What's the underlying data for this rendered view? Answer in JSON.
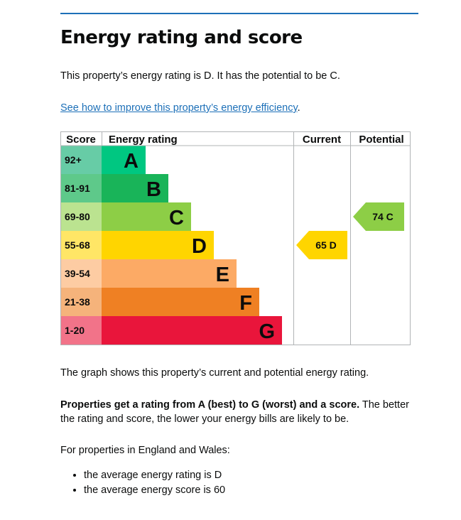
{
  "page": {
    "title": "Energy rating and score",
    "intro": "This property’s energy rating is D. It has the potential to be C.",
    "improve_link": "See how to improve this property’s energy efficiency",
    "improve_link_suffix": ".",
    "summary": "The graph shows this property’s current and potential energy rating.",
    "rating_info_bold": "Properties get a rating from A (best) to G (worst) and a score.",
    "rating_info_rest": " The better the rating and score, the lower your energy bills are likely to be.",
    "region_intro": "For properties in England and Wales:",
    "averages": [
      "the average energy rating is D",
      "the average energy score is 60"
    ]
  },
  "chart_data": {
    "type": "table",
    "headers": {
      "score": "Score",
      "rating": "Energy rating",
      "current": "Current",
      "potential": "Potential"
    },
    "bands": [
      {
        "letter": "A",
        "score_range": "92+",
        "color": "#00c781",
        "score_bg": "#67cca6"
      },
      {
        "letter": "B",
        "score_range": "81-91",
        "color": "#19b459",
        "score_bg": "#5ec98a"
      },
      {
        "letter": "C",
        "score_range": "69-80",
        "color": "#8dce46",
        "score_bg": "#bbe390"
      },
      {
        "letter": "D",
        "score_range": "55-68",
        "color": "#ffd500",
        "score_bg": "#ffe666"
      },
      {
        "letter": "E",
        "score_range": "39-54",
        "color": "#fcaa65",
        "score_bg": "#fdcca3"
      },
      {
        "letter": "F",
        "score_range": "21-38",
        "color": "#ef8023",
        "score_bg": "#f5b37b"
      },
      {
        "letter": "G",
        "score_range": "1-20",
        "color": "#e9153b",
        "score_bg": "#f27389"
      }
    ],
    "current": {
      "score": 65,
      "band": "D",
      "label": "65 D",
      "color": "#ffd500"
    },
    "potential": {
      "score": 74,
      "band": "C",
      "label": "74 C",
      "color": "#8dce46"
    }
  }
}
